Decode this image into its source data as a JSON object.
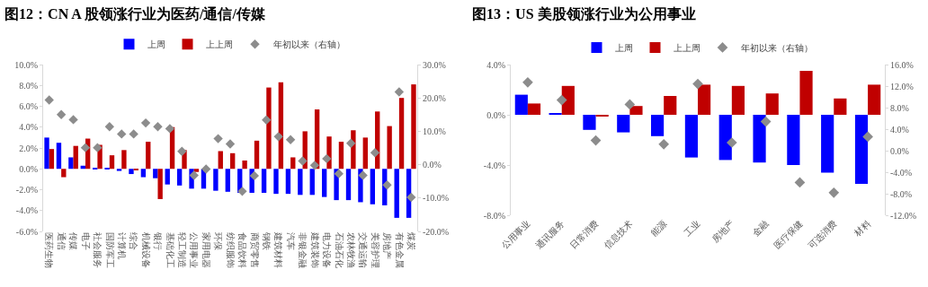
{
  "chart_data": [
    {
      "type": "bar",
      "title": "图12：CN A 股领涨行业为医药/通信/传媒",
      "legend": "top",
      "grid": false,
      "marker": "diamond",
      "categories": [
        "医药生物",
        "通信",
        "传媒",
        "电子",
        "社会服务",
        "国防军工",
        "计算机",
        "综合",
        "机械设备",
        "银行",
        "基础化工",
        "轻工制造",
        "公用事业",
        "家用电器",
        "环保",
        "纺织服饰",
        "食品饮料",
        "商贸零售",
        "钢铁",
        "建筑材料",
        "汽车",
        "非银金融",
        "建筑装饰",
        "电力设备",
        "石油石化",
        "农林牧渔",
        "交通运输",
        "美容护理",
        "房地产",
        "有色金属",
        "煤炭"
      ],
      "ylim": [
        -6,
        10
      ],
      "yticks": [
        {
          "value": -6,
          "label": "-6.0%"
        },
        {
          "value": -4,
          "label": "-4.0%"
        },
        {
          "value": -2,
          "label": "-2.0%"
        },
        {
          "value": 0,
          "label": "0.0%"
        },
        {
          "value": 2,
          "label": "2.0%"
        },
        {
          "value": 4,
          "label": "4.0%"
        },
        {
          "value": 6,
          "label": "6.0%"
        },
        {
          "value": 8,
          "label": "8.0%"
        },
        {
          "value": 10,
          "label": "10.0%"
        }
      ],
      "y2lim": [
        -20,
        30
      ],
      "y2ticks": [
        {
          "value": -20,
          "label": "-20.0%"
        },
        {
          "value": -10,
          "label": "-10.0%"
        },
        {
          "value": 0,
          "label": "0.0%"
        },
        {
          "value": 10,
          "label": "10.0%"
        },
        {
          "value": 20,
          "label": "20.0%"
        },
        {
          "value": 30,
          "label": "30.0%"
        }
      ],
      "series": [
        {
          "name": "上周",
          "color": "#0000ff",
          "values": [
            3.0,
            2.5,
            1.1,
            0.3,
            0.1,
            0.1,
            -0.2,
            -0.5,
            -0.8,
            -0.9,
            -1.5,
            -1.6,
            -1.9,
            -1.9,
            -2.1,
            -2.2,
            -2.3,
            -2.3,
            -2.3,
            -2.4,
            -2.4,
            -2.5,
            -2.5,
            -2.7,
            -3.0,
            -3.0,
            -3.2,
            -3.4,
            -3.5,
            -4.7,
            -4.7
          ]
        },
        {
          "name": "上上周",
          "color": "#c00000",
          "values": [
            1.9,
            -0.8,
            2.2,
            2.9,
            2.3,
            1.3,
            1.8,
            -0.1,
            2.6,
            -2.9,
            4.0,
            1.8,
            -0.3,
            0.0,
            1.7,
            1.5,
            0.8,
            2.7,
            7.8,
            8.3,
            1.1,
            3.6,
            5.7,
            3.1,
            2.6,
            3.7,
            3.0,
            5.5,
            4.1,
            6.8,
            8.1
          ]
        },
        {
          "name": "年初以来（右轴）",
          "type": "scatter",
          "axis": "y2",
          "color": "#8c8c8c",
          "values": [
            19.4,
            15.0,
            13.5,
            5.1,
            5.1,
            11.4,
            9.2,
            9.2,
            12.5,
            11.4,
            10.8,
            4.0,
            -3.2,
            -1.3,
            7.8,
            6.2,
            -8.0,
            -3.3,
            13.4,
            8.4,
            7.5,
            1.1,
            -0.2,
            1.8,
            -2.7,
            6.4,
            -3.2,
            3.6,
            -6.1,
            21.8,
            -9.8
          ]
        }
      ]
    },
    {
      "type": "bar",
      "title": "图13：US 美股领涨行业为公用事业",
      "legend": "top",
      "grid": false,
      "marker": "diamond",
      "categories": [
        "公用事业",
        "通讯服务",
        "日常消费",
        "信息技术",
        "能源",
        "工业",
        "房地产",
        "金融",
        "医疗保健",
        "可选消费",
        "材料"
      ],
      "ylim": [
        -8,
        4
      ],
      "yticks": [
        {
          "value": -8,
          "label": "-8.0%"
        },
        {
          "value": -4,
          "label": "-4.0%"
        },
        {
          "value": 0,
          "label": "0.0%"
        },
        {
          "value": 4,
          "label": "4.0%"
        }
      ],
      "y2lim": [
        -12,
        16
      ],
      "y2ticks": [
        {
          "value": -12,
          "label": "-12.0%"
        },
        {
          "value": -8,
          "label": "-8.0%"
        },
        {
          "value": -4,
          "label": "-4.0%"
        },
        {
          "value": 0,
          "label": "0.0%"
        },
        {
          "value": 4,
          "label": "4.0%"
        },
        {
          "value": 8,
          "label": "8.0%"
        },
        {
          "value": 12,
          "label": "12.0%"
        },
        {
          "value": 16,
          "label": "16.0%"
        }
      ],
      "series": [
        {
          "name": "上周",
          "color": "#0000ff",
          "values": [
            1.6,
            0.1,
            -1.2,
            -1.4,
            -1.7,
            -3.4,
            -3.6,
            -3.8,
            -4.0,
            -4.6,
            -5.5
          ]
        },
        {
          "name": "上上周",
          "color": "#c00000",
          "values": [
            0.9,
            2.3,
            -0.1,
            0.7,
            1.5,
            2.4,
            2.3,
            1.7,
            3.5,
            1.3,
            2.4
          ]
        },
        {
          "name": "年初以来（右轴）",
          "type": "scatter",
          "axis": "y2",
          "color": "#8c8c8c",
          "values": [
            12.7,
            9.4,
            1.9,
            8.6,
            1.2,
            12.4,
            1.5,
            5.4,
            -5.9,
            -7.8,
            2.6
          ]
        }
      ]
    }
  ]
}
